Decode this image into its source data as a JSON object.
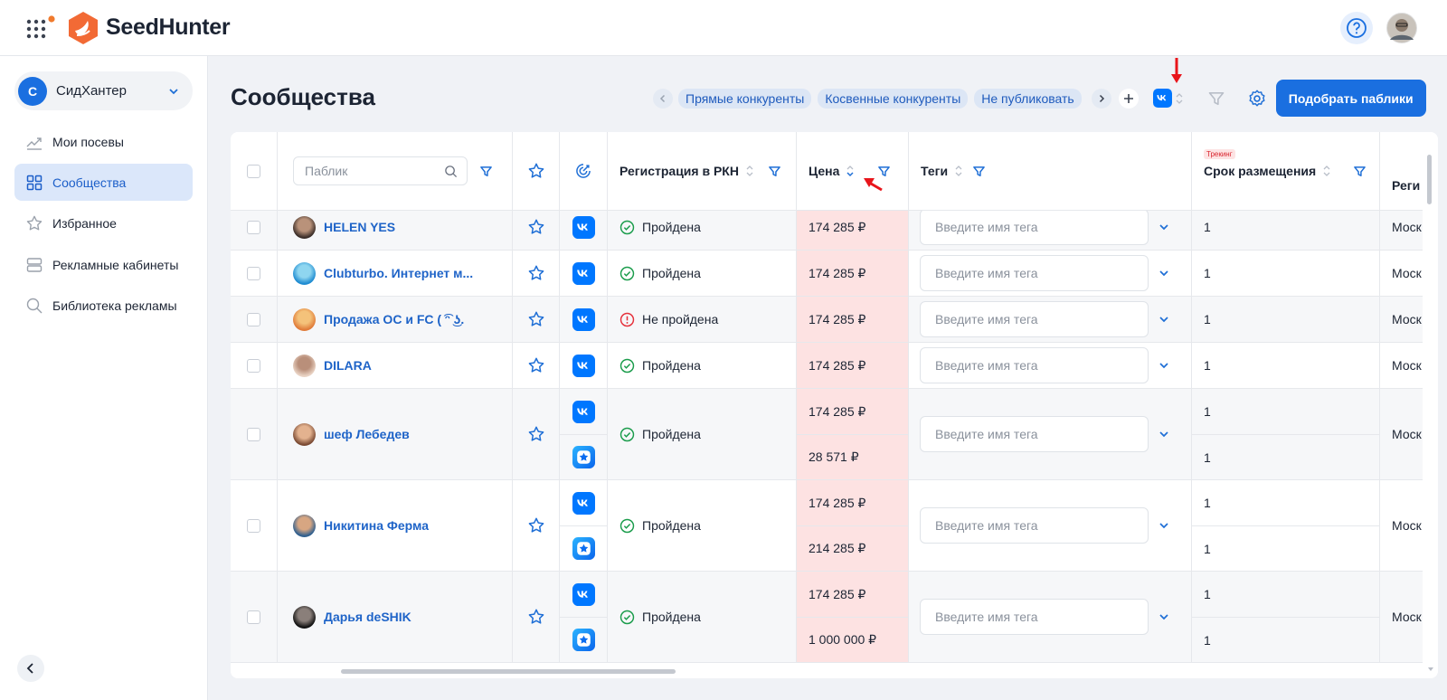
{
  "header": {
    "logo": "SeedHunter"
  },
  "sidebar": {
    "workspace": {
      "initial": "С",
      "name": "СидХантер"
    },
    "nav": [
      {
        "label": "Мои посевы",
        "active": false
      },
      {
        "label": "Сообщества",
        "active": true
      },
      {
        "label": "Избранное",
        "active": false
      },
      {
        "label": "Рекламные кабинеты",
        "active": false
      },
      {
        "label": "Библиотека рекламы",
        "active": false
      }
    ]
  },
  "page": {
    "title": "Сообщества",
    "tabs": [
      "Прямые конкуренты",
      "Косвенные конкуренты",
      "Не публиковать"
    ],
    "button": "Подобрать паблики"
  },
  "table": {
    "columns": {
      "search_placeholder": "Паблик",
      "rkn": "Регистрация в РКН",
      "price": "Цена",
      "tags": "Теги",
      "tracking_badge": "Трекинг",
      "term": "Срок размещения",
      "region": "Реги"
    },
    "tag_placeholder": "Введите имя тега",
    "rows": [
      {
        "name": "HELEN YES",
        "status": "Пройдена",
        "passed": true,
        "region": "Моск",
        "placements": [
          {
            "platform": "vk",
            "price": "174 285 ₽",
            "term": 1
          }
        ]
      },
      {
        "name": "Clubturbo. Интернет м...",
        "status": "Пройдена",
        "passed": true,
        "region": "Моск",
        "placements": [
          {
            "platform": "vk",
            "price": "174 285 ₽",
            "term": 1
          }
        ]
      },
      {
        "name": "Продажа ОС и FC ( ͡ᵔ ͜ʖ.",
        "status": "Не пройдена",
        "passed": false,
        "region": "Моск",
        "placements": [
          {
            "platform": "vk",
            "price": "174 285 ₽",
            "term": 1
          }
        ]
      },
      {
        "name": "DILARA",
        "status": "Пройдена",
        "passed": true,
        "region": "Моск",
        "placements": [
          {
            "platform": "vk",
            "price": "174 285 ₽",
            "term": 1
          }
        ]
      },
      {
        "name": "шеф Лебедев",
        "status": "Пройдена",
        "passed": true,
        "region": "Моск",
        "placements": [
          {
            "platform": "vk",
            "price": "174 285 ₽",
            "term": 1
          },
          {
            "platform": "star",
            "price": "28 571 ₽",
            "term": 1
          }
        ]
      },
      {
        "name": "Никитина Ферма",
        "status": "Пройдена",
        "passed": true,
        "region": "Моск",
        "placements": [
          {
            "platform": "vk",
            "price": "174 285 ₽",
            "term": 1
          },
          {
            "platform": "star",
            "price": "214 285 ₽",
            "term": 1
          }
        ]
      },
      {
        "name": "Дарья deSHIK",
        "status": "Пройдена",
        "passed": true,
        "region": "Моск",
        "placements": [
          {
            "platform": "vk",
            "price": "174 285 ₽",
            "term": 1
          },
          {
            "platform": "star",
            "price": "1 000 000 ₽",
            "term": 1
          }
        ]
      }
    ]
  }
}
